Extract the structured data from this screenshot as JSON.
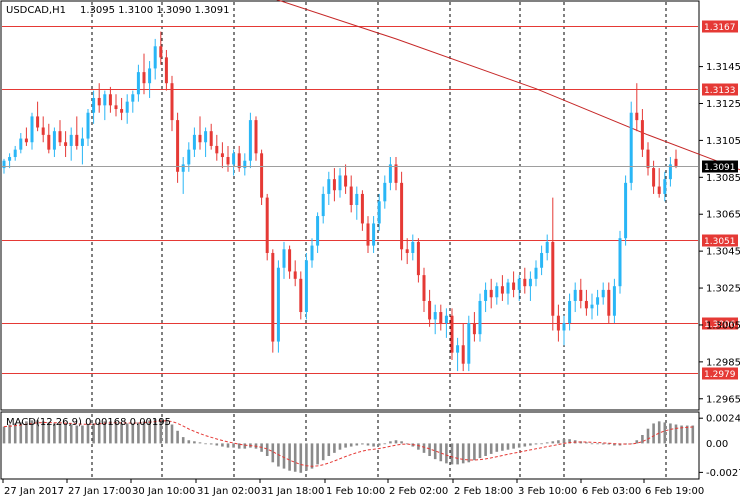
{
  "header": {
    "symbol": "USDCAD,H1",
    "ohlc": "1.3095 1.3100 1.3090 1.3091",
    "macd_label": "MACD(12,26,9) 0.00168 0.00195"
  },
  "colors": {
    "bull": "#29b6f6",
    "bear": "#e53935",
    "level": "#e53935",
    "ma": "#c62828",
    "grid": "#000000",
    "hist": "#8a8a8a",
    "signal": "#e53935",
    "current_price_bg": "#000000"
  },
  "chart_data": {
    "type": "candlestick",
    "x_labels": [
      "27 Jan 2017",
      "27 Jan 17:00",
      "30 Jan 10:00",
      "31 Jan 02:00",
      "31 Jan 18:00",
      "1 Feb 10:00",
      "2 Feb 02:00",
      "2 Feb 18:00",
      "3 Feb 10:00",
      "6 Feb 03:00",
      "6 Feb 19:00"
    ],
    "y_ticks": [
      "1.3145",
      "1.3125",
      "1.3105",
      "1.3085",
      "1.3065",
      "1.3045",
      "1.3025",
      "1.3005",
      "1.2985",
      "1.2965"
    ],
    "y_range": [
      1.296,
      1.318
    ],
    "levels": [
      "1.3167",
      "1.3133",
      "1.3051",
      "1.3006",
      "1.2979"
    ],
    "current_price": "1.3091",
    "ma_path": [
      [
        45,
        1.3185
      ],
      [
        70,
        1.316
      ],
      [
        95,
        1.3133
      ],
      [
        115,
        1.3108
      ],
      [
        135,
        1.3085
      ],
      [
        150,
        1.3073
      ],
      [
        165,
        1.3068
      ]
    ],
    "candles": [
      [
        1.309,
        1.3095,
        1.3087,
        1.3094
      ],
      [
        1.3094,
        1.3098,
        1.309,
        1.3096
      ],
      [
        1.3096,
        1.3102,
        1.3094,
        1.31
      ],
      [
        1.31,
        1.3109,
        1.3098,
        1.3106
      ],
      [
        1.3106,
        1.3112,
        1.3102,
        1.3104
      ],
      [
        1.3104,
        1.312,
        1.31,
        1.3118
      ],
      [
        1.3118,
        1.3126,
        1.311,
        1.3112
      ],
      [
        1.3112,
        1.3118,
        1.3104,
        1.3108
      ],
      [
        1.3108,
        1.3114,
        1.3098,
        1.31
      ],
      [
        1.31,
        1.3112,
        1.3096,
        1.311
      ],
      [
        1.311,
        1.3116,
        1.3102,
        1.3104
      ],
      [
        1.3104,
        1.311,
        1.3096,
        1.3102
      ],
      [
        1.3102,
        1.3112,
        1.3094,
        1.3108
      ],
      [
        1.3108,
        1.3118,
        1.31,
        1.3102
      ],
      [
        1.3102,
        1.3112,
        1.3092,
        1.3106
      ],
      [
        1.3106,
        1.3122,
        1.3102,
        1.312
      ],
      [
        1.312,
        1.3132,
        1.3114,
        1.3128
      ],
      [
        1.3128,
        1.3136,
        1.312,
        1.3124
      ],
      [
        1.3124,
        1.3132,
        1.3116,
        1.313
      ],
      [
        1.313,
        1.3134,
        1.312,
        1.3124
      ],
      [
        1.3124,
        1.313,
        1.3118,
        1.3122
      ],
      [
        1.3122,
        1.3128,
        1.3116,
        1.312
      ],
      [
        1.312,
        1.313,
        1.3114,
        1.3126
      ],
      [
        1.3126,
        1.3132,
        1.312,
        1.313
      ],
      [
        1.313,
        1.3146,
        1.3126,
        1.3142
      ],
      [
        1.3142,
        1.3152,
        1.313,
        1.3136
      ],
      [
        1.3136,
        1.3148,
        1.3128,
        1.3144
      ],
      [
        1.3144,
        1.316,
        1.3138,
        1.3156
      ],
      [
        1.3156,
        1.3164,
        1.3146,
        1.315
      ],
      [
        1.315,
        1.3154,
        1.3132,
        1.3136
      ],
      [
        1.3136,
        1.314,
        1.311,
        1.3116
      ],
      [
        1.3116,
        1.312,
        1.3082,
        1.3088
      ],
      [
        1.3088,
        1.3096,
        1.3076,
        1.3092
      ],
      [
        1.3092,
        1.3104,
        1.3088,
        1.31
      ],
      [
        1.31,
        1.3112,
        1.3096,
        1.3108
      ],
      [
        1.3108,
        1.3118,
        1.31,
        1.3104
      ],
      [
        1.3104,
        1.3112,
        1.3096,
        1.311
      ],
      [
        1.311,
        1.3114,
        1.31,
        1.3102
      ],
      [
        1.3102,
        1.3108,
        1.3094,
        1.3098
      ],
      [
        1.3098,
        1.3104,
        1.309,
        1.3096
      ],
      [
        1.3096,
        1.3102,
        1.3088,
        1.3092
      ],
      [
        1.3092,
        1.31,
        1.3086,
        1.3098
      ],
      [
        1.3098,
        1.3102,
        1.3088,
        1.309
      ],
      [
        1.309,
        1.3098,
        1.3086,
        1.3094
      ],
      [
        1.3094,
        1.312,
        1.309,
        1.3116
      ],
      [
        1.3116,
        1.3118,
        1.3094,
        1.3098
      ],
      [
        1.3098,
        1.31,
        1.307,
        1.3074
      ],
      [
        1.3074,
        1.3076,
        1.304,
        1.3044
      ],
      [
        1.3044,
        1.3046,
        1.299,
        1.2996
      ],
      [
        1.2996,
        1.304,
        1.299,
        1.3036
      ],
      [
        1.3036,
        1.305,
        1.303,
        1.3046
      ],
      [
        1.3046,
        1.3048,
        1.303,
        1.3034
      ],
      [
        1.3034,
        1.304,
        1.3026,
        1.303
      ],
      [
        1.303,
        1.3034,
        1.3008,
        1.3012
      ],
      [
        1.3012,
        1.3044,
        1.3008,
        1.304
      ],
      [
        1.304,
        1.3052,
        1.3036,
        1.3048
      ],
      [
        1.3048,
        1.3066,
        1.3044,
        1.3064
      ],
      [
        1.3064,
        1.308,
        1.306,
        1.3076
      ],
      [
        1.3076,
        1.3088,
        1.307,
        1.3084
      ],
      [
        1.3084,
        1.309,
        1.3072,
        1.3078
      ],
      [
        1.3078,
        1.309,
        1.3074,
        1.3086
      ],
      [
        1.3086,
        1.3092,
        1.3076,
        1.308
      ],
      [
        1.308,
        1.3086,
        1.3066,
        1.307
      ],
      [
        1.307,
        1.308,
        1.3062,
        1.3076
      ],
      [
        1.3076,
        1.3078,
        1.3056,
        1.306
      ],
      [
        1.306,
        1.3064,
        1.3044,
        1.3048
      ],
      [
        1.3048,
        1.3064,
        1.3044,
        1.306
      ],
      [
        1.306,
        1.3076,
        1.3056,
        1.3072
      ],
      [
        1.3072,
        1.3086,
        1.3068,
        1.3082
      ],
      [
        1.3082,
        1.3096,
        1.3078,
        1.3092
      ],
      [
        1.3092,
        1.3096,
        1.3078,
        1.3082
      ],
      [
        1.3082,
        1.3088,
        1.304,
        1.3046
      ],
      [
        1.3046,
        1.3052,
        1.3038,
        1.3044
      ],
      [
        1.3044,
        1.3054,
        1.304,
        1.305
      ],
      [
        1.305,
        1.3052,
        1.3028,
        1.3032
      ],
      [
        1.3032,
        1.3036,
        1.3012,
        1.3018
      ],
      [
        1.3018,
        1.3024,
        1.3004,
        1.3008
      ],
      [
        1.3008,
        1.3016,
        1.3,
        1.3012
      ],
      [
        1.3012,
        1.3016,
        1.3002,
        1.3006
      ],
      [
        1.3006,
        1.3014,
        1.2998,
        1.301
      ],
      [
        1.301,
        1.3014,
        1.2986,
        1.299
      ],
      [
        1.299,
        1.2998,
        1.298,
        1.2994
      ],
      [
        1.2994,
        1.3006,
        1.298,
        1.2984
      ],
      [
        1.2984,
        1.301,
        1.298,
        1.3006
      ],
      [
        1.3006,
        1.3012,
        1.2996,
        1.3
      ],
      [
        1.3,
        1.3022,
        1.2996,
        1.3018
      ],
      [
        1.3018,
        1.3028,
        1.3012,
        1.3024
      ],
      [
        1.3024,
        1.303,
        1.3014,
        1.302
      ],
      [
        1.302,
        1.3028,
        1.3016,
        1.3026
      ],
      [
        1.3026,
        1.3032,
        1.3018,
        1.3022
      ],
      [
        1.3022,
        1.303,
        1.3016,
        1.3028
      ],
      [
        1.3028,
        1.3034,
        1.302,
        1.3024
      ],
      [
        1.3024,
        1.3032,
        1.3018,
        1.303
      ],
      [
        1.303,
        1.3036,
        1.3022,
        1.3026
      ],
      [
        1.3026,
        1.3034,
        1.3018,
        1.303
      ],
      [
        1.303,
        1.304,
        1.3026,
        1.3036
      ],
      [
        1.3036,
        1.3048,
        1.3032,
        1.3044
      ],
      [
        1.3044,
        1.3054,
        1.304,
        1.305
      ],
      [
        1.305,
        1.3074,
        1.3002,
        1.301
      ],
      [
        1.301,
        1.3016,
        1.2996,
        1.3002
      ],
      [
        1.3002,
        1.301,
        1.2994,
        1.3006
      ],
      [
        1.3006,
        1.3022,
        1.3002,
        1.3018
      ],
      [
        1.3018,
        1.3028,
        1.3012,
        1.3024
      ],
      [
        1.3024,
        1.303,
        1.3014,
        1.3018
      ],
      [
        1.3018,
        1.3024,
        1.301,
        1.3014
      ],
      [
        1.3014,
        1.3022,
        1.3008,
        1.3016
      ],
      [
        1.3016,
        1.3024,
        1.301,
        1.302
      ],
      [
        1.302,
        1.3028,
        1.3016,
        1.3024
      ],
      [
        1.3024,
        1.3028,
        1.3006,
        1.301
      ],
      [
        1.301,
        1.303,
        1.3006,
        1.3026
      ],
      [
        1.3026,
        1.3056,
        1.3022,
        1.3052
      ],
      [
        1.3052,
        1.3086,
        1.3048,
        1.3082
      ],
      [
        1.3082,
        1.3126,
        1.3078,
        1.312
      ],
      [
        1.312,
        1.3136,
        1.311,
        1.3116
      ],
      [
        1.3116,
        1.3122,
        1.3096,
        1.31
      ],
      [
        1.31,
        1.3104,
        1.3086,
        1.309
      ],
      [
        1.309,
        1.3094,
        1.3076,
        1.308
      ],
      [
        1.308,
        1.309,
        1.3074,
        1.3076
      ],
      [
        1.3076,
        1.3088,
        1.3072,
        1.3084
      ],
      [
        1.3084,
        1.3096,
        1.308,
        1.3092
      ],
      [
        1.3095,
        1.31,
        1.309,
        1.3091
      ]
    ],
    "macd": {
      "y_ticks": [
        "0.0024",
        "-0.00276"
      ],
      "hist": [
        0.0016,
        0.0018,
        0.0019,
        0.002,
        0.0021,
        0.0022,
        0.0022,
        0.0021,
        0.002,
        0.0019,
        0.0019,
        0.0018,
        0.0018,
        0.0017,
        0.0017,
        0.0018,
        0.0019,
        0.002,
        0.0021,
        0.0021,
        0.002,
        0.0019,
        0.0019,
        0.0019,
        0.002,
        0.0021,
        0.0022,
        0.0023,
        0.0024,
        0.0022,
        0.0018,
        0.0012,
        0.0006,
        0.0003,
        0.0002,
        0.0001,
        0.0,
        -0.0001,
        -0.0002,
        -0.0003,
        -0.0004,
        -0.0004,
        -0.0005,
        -0.0005,
        -0.0004,
        -0.0005,
        -0.0008,
        -0.0012,
        -0.0018,
        -0.0022,
        -0.0024,
        -0.0026,
        -0.0027,
        -0.0028,
        -0.0026,
        -0.0024,
        -0.002,
        -0.0016,
        -0.0012,
        -0.0009,
        -0.0006,
        -0.0004,
        -0.0003,
        -0.0002,
        -0.0001,
        -0.0002,
        -0.0003,
        -0.0002,
        0.0,
        0.0002,
        0.0003,
        0.0002,
        0.0,
        -0.0003,
        -0.0006,
        -0.0009,
        -0.0012,
        -0.0015,
        -0.0017,
        -0.0019,
        -0.002,
        -0.002,
        -0.0019,
        -0.0018,
        -0.0016,
        -0.0014,
        -0.0012,
        -0.001,
        -0.0008,
        -0.0007,
        -0.0006,
        -0.0005,
        -0.0004,
        -0.0003,
        -0.0002,
        -0.0001,
        0.0,
        0.0001,
        0.0002,
        0.0003,
        0.0004,
        0.0004,
        0.0003,
        0.0002,
        0.0001,
        0.0,
        0.0,
        -0.0001,
        -0.0001,
        -0.0002,
        -0.0002,
        -0.0001,
        0.0,
        0.0003,
        0.0008,
        0.0014,
        0.0019,
        0.0021,
        0.002,
        0.0019,
        0.0018,
        0.0017,
        0.0017,
        0.0017
      ]
    }
  }
}
